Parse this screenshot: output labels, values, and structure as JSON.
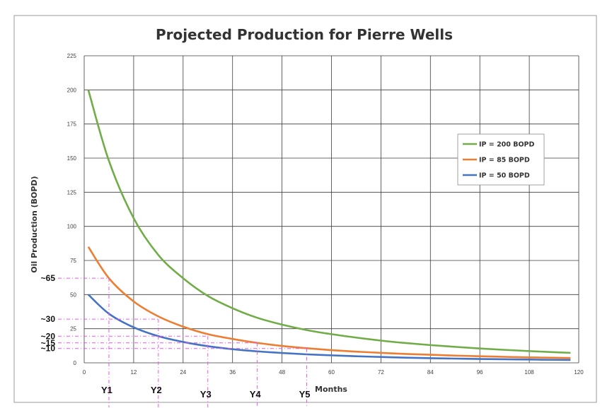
{
  "chart_data": {
    "type": "line",
    "title": "Projected Production for Pierre Wells",
    "xlabel": "Months",
    "ylabel": "Oil Production (BOPD)",
    "xlim": [
      0,
      120
    ],
    "ylim": [
      0,
      225
    ],
    "x_ticks": [
      0,
      12,
      24,
      36,
      48,
      60,
      72,
      84,
      96,
      108,
      120
    ],
    "y_ticks": [
      0,
      25,
      50,
      75,
      100,
      125,
      150,
      175,
      200,
      225
    ],
    "grid": true,
    "legend_position": "right",
    "x": [
      1,
      6,
      12,
      18,
      24,
      30,
      36,
      42,
      48,
      54,
      60,
      66,
      72,
      78,
      84,
      90,
      96,
      102,
      108,
      114,
      118
    ],
    "series": [
      {
        "name": "IP = 200 BOPD",
        "color": "#70ad47",
        "values": [
          200,
          148,
          106,
          79,
          62,
          49,
          40,
          33,
          28,
          24,
          21,
          18.5,
          16.3,
          14.5,
          13,
          11.7,
          10.5,
          9.5,
          8.6,
          7.8,
          7.3
        ]
      },
      {
        "name": "IP = 85 BOPD",
        "color": "#ed7d31",
        "values": [
          85,
          62,
          45,
          34,
          26.5,
          21,
          17.5,
          14.6,
          12.4,
          10.7,
          9.3,
          8.2,
          7.3,
          6.5,
          5.9,
          5.3,
          4.8,
          4.4,
          4,
          3.7,
          3.5
        ]
      },
      {
        "name": "IP = 50 BOPD",
        "color": "#4472c4",
        "values": [
          50,
          36,
          26,
          19.5,
          15.3,
          12.2,
          10,
          8.4,
          7.2,
          6.2,
          5.5,
          4.8,
          4.3,
          3.8,
          3.4,
          3.1,
          2.8,
          2.6,
          2.4,
          2.2,
          2.1
        ]
      }
    ],
    "annotations": {
      "guide_color": "#ee55ee",
      "levels": [
        {
          "label": "~65",
          "value": 62,
          "x_end": 6
        },
        {
          "label": "~30",
          "value": 32,
          "x_end": 18
        },
        {
          "label": "~20",
          "value": 19.5,
          "x_end": 30
        },
        {
          "label": "~15",
          "value": 14.6,
          "x_end": 42
        },
        {
          "label": "~10",
          "value": 10.5,
          "x_end": 54
        }
      ],
      "years": [
        {
          "label": "Y1",
          "month": 6
        },
        {
          "label": "Y2",
          "month": 18
        },
        {
          "label": "Y3",
          "month": 30
        },
        {
          "label": "Y4",
          "month": 42
        },
        {
          "label": "Y5",
          "month": 54
        }
      ]
    }
  }
}
